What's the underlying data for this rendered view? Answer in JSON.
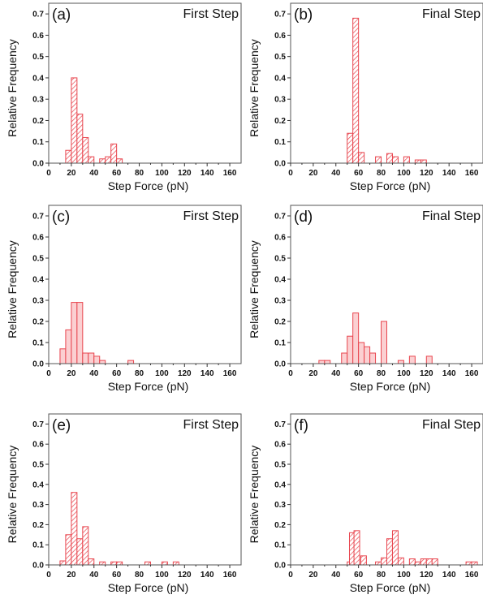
{
  "chart_data": [
    {
      "type": "bar",
      "panel_label": "(a)",
      "title": "First Step",
      "xlabel": "Step Force (pN)",
      "ylabel": "Relative Frequency",
      "xlim": [
        0,
        170
      ],
      "ylim": [
        0,
        0.75
      ],
      "xticks": [
        "0",
        "20",
        "40",
        "60",
        "80",
        "100",
        "120",
        "140",
        "160"
      ],
      "yticks": [
        "0.0",
        "0.1",
        "0.2",
        "0.3",
        "0.4",
        "0.5",
        "0.6",
        "0.7"
      ],
      "fill_style": "hatched",
      "color": "#e8454e",
      "bin_width": 5,
      "bins": [
        {
          "x": 15,
          "value": 0.06
        },
        {
          "x": 20,
          "value": 0.4
        },
        {
          "x": 25,
          "value": 0.23
        },
        {
          "x": 30,
          "value": 0.12
        },
        {
          "x": 35,
          "value": 0.03
        },
        {
          "x": 45,
          "value": 0.02
        },
        {
          "x": 50,
          "value": 0.03
        },
        {
          "x": 55,
          "value": 0.09
        },
        {
          "x": 60,
          "value": 0.02
        }
      ]
    },
    {
      "type": "bar",
      "panel_label": "(b)",
      "title": "Final Step",
      "xlabel": "Step Force (pN)",
      "ylabel": "Relative Frequency",
      "xlim": [
        0,
        170
      ],
      "ylim": [
        0,
        0.75
      ],
      "xticks": [
        "0",
        "20",
        "40",
        "60",
        "80",
        "100",
        "120",
        "140",
        "160"
      ],
      "yticks": [
        "0.0",
        "0.1",
        "0.2",
        "0.3",
        "0.4",
        "0.5",
        "0.6",
        "0.7"
      ],
      "fill_style": "hatched",
      "color": "#e8454e",
      "bin_width": 5,
      "bins": [
        {
          "x": 50,
          "value": 0.14
        },
        {
          "x": 55,
          "value": 0.68
        },
        {
          "x": 60,
          "value": 0.05
        },
        {
          "x": 75,
          "value": 0.03
        },
        {
          "x": 85,
          "value": 0.045
        },
        {
          "x": 90,
          "value": 0.03
        },
        {
          "x": 100,
          "value": 0.03
        },
        {
          "x": 110,
          "value": 0.015
        },
        {
          "x": 115,
          "value": 0.015
        }
      ]
    },
    {
      "type": "bar",
      "panel_label": "(c)",
      "title": "First Step",
      "xlabel": "Step Force (pN)",
      "ylabel": "Relative Frequency",
      "xlim": [
        0,
        170
      ],
      "ylim": [
        0,
        0.75
      ],
      "xticks": [
        "0",
        "20",
        "40",
        "60",
        "80",
        "100",
        "120",
        "140",
        "160"
      ],
      "yticks": [
        "0.0",
        "0.1",
        "0.2",
        "0.3",
        "0.4",
        "0.5",
        "0.6",
        "0.7"
      ],
      "fill_style": "solid",
      "color": "#e8454e",
      "bin_width": 5,
      "bins": [
        {
          "x": 10,
          "value": 0.07
        },
        {
          "x": 15,
          "value": 0.16
        },
        {
          "x": 20,
          "value": 0.29
        },
        {
          "x": 25,
          "value": 0.29
        },
        {
          "x": 30,
          "value": 0.05
        },
        {
          "x": 35,
          "value": 0.05
        },
        {
          "x": 40,
          "value": 0.035
        },
        {
          "x": 45,
          "value": 0.015
        },
        {
          "x": 70,
          "value": 0.015
        }
      ]
    },
    {
      "type": "bar",
      "panel_label": "(d)",
      "title": "Final Step",
      "xlabel": "Step Force (pN)",
      "ylabel": "Relative Frequency",
      "xlim": [
        0,
        170
      ],
      "ylim": [
        0,
        0.75
      ],
      "xticks": [
        "0",
        "20",
        "40",
        "60",
        "80",
        "100",
        "120",
        "140",
        "160"
      ],
      "yticks": [
        "0.0",
        "0.1",
        "0.2",
        "0.3",
        "0.4",
        "0.5",
        "0.6",
        "0.7"
      ],
      "fill_style": "solid",
      "color": "#e8454e",
      "bin_width": 5,
      "bins": [
        {
          "x": 25,
          "value": 0.015
        },
        {
          "x": 30,
          "value": 0.015
        },
        {
          "x": 45,
          "value": 0.05
        },
        {
          "x": 50,
          "value": 0.13
        },
        {
          "x": 55,
          "value": 0.24
        },
        {
          "x": 60,
          "value": 0.1
        },
        {
          "x": 65,
          "value": 0.08
        },
        {
          "x": 70,
          "value": 0.05
        },
        {
          "x": 80,
          "value": 0.2
        },
        {
          "x": 95,
          "value": 0.015
        },
        {
          "x": 105,
          "value": 0.035
        },
        {
          "x": 120,
          "value": 0.035
        }
      ]
    },
    {
      "type": "bar",
      "panel_label": "(e)",
      "title": "First Step",
      "xlabel": "Step Force (pN)",
      "ylabel": "Relative Frequency",
      "xlim": [
        0,
        170
      ],
      "ylim": [
        0,
        0.75
      ],
      "xticks": [
        "0",
        "20",
        "40",
        "60",
        "80",
        "100",
        "120",
        "140",
        "160"
      ],
      "yticks": [
        "0.0",
        "0.1",
        "0.2",
        "0.3",
        "0.4",
        "0.5",
        "0.6",
        "0.7"
      ],
      "fill_style": "hatched",
      "color": "#e8454e",
      "bin_width": 5,
      "bins": [
        {
          "x": 10,
          "value": 0.02
        },
        {
          "x": 15,
          "value": 0.15
        },
        {
          "x": 20,
          "value": 0.36
        },
        {
          "x": 25,
          "value": 0.13
        },
        {
          "x": 30,
          "value": 0.19
        },
        {
          "x": 35,
          "value": 0.03
        },
        {
          "x": 45,
          "value": 0.015
        },
        {
          "x": 55,
          "value": 0.015
        },
        {
          "x": 60,
          "value": 0.015
        },
        {
          "x": 85,
          "value": 0.015
        },
        {
          "x": 100,
          "value": 0.015
        },
        {
          "x": 110,
          "value": 0.015
        }
      ]
    },
    {
      "type": "bar",
      "panel_label": "(f)",
      "title": "Final Step",
      "xlabel": "Step Force (pN)",
      "ylabel": "Relative Frequency",
      "xlim": [
        0,
        170
      ],
      "ylim": [
        0,
        0.75
      ],
      "xticks": [
        "0",
        "20",
        "40",
        "60",
        "80",
        "100",
        "120",
        "140",
        "160"
      ],
      "yticks": [
        "0.0",
        "0.1",
        "0.2",
        "0.3",
        "0.4",
        "0.5",
        "0.6",
        "0.7"
      ],
      "fill_style": "hatched",
      "color": "#e8454e",
      "bin_width": 5,
      "bins": [
        {
          "x": 50,
          "value": 0.015
        },
        {
          "x": 52,
          "value": 0.16
        },
        {
          "x": 56,
          "value": 0.17
        },
        {
          "x": 62,
          "value": 0.045
        },
        {
          "x": 75,
          "value": 0.015
        },
        {
          "x": 80,
          "value": 0.035
        },
        {
          "x": 85,
          "value": 0.13
        },
        {
          "x": 90,
          "value": 0.17
        },
        {
          "x": 95,
          "value": 0.035
        },
        {
          "x": 105,
          "value": 0.03
        },
        {
          "x": 110,
          "value": 0.015
        },
        {
          "x": 115,
          "value": 0.03
        },
        {
          "x": 120,
          "value": 0.03
        },
        {
          "x": 125,
          "value": 0.03
        },
        {
          "x": 155,
          "value": 0.015
        },
        {
          "x": 160,
          "value": 0.015
        }
      ]
    }
  ]
}
